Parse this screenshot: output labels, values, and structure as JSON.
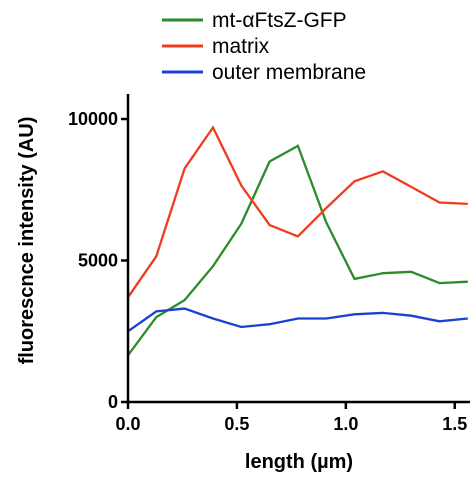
{
  "chart_data": {
    "type": "line",
    "xlabel": "length (µm)",
    "ylabel": "fluorescnce intensity (AU)",
    "xlim": [
      0,
      1.57
    ],
    "ylim": [
      0,
      10000
    ],
    "x_ticks": [
      "0.0",
      "0.5",
      "1.0",
      "1.5"
    ],
    "y_ticks": [
      "0",
      "5000",
      "10000"
    ],
    "legend_position": "top",
    "grid": false,
    "series": [
      {
        "name": "mt-αFtsZ-GFP",
        "color": "#2a8c2a",
        "x": [
          0.0,
          0.13,
          0.26,
          0.39,
          0.52,
          0.65,
          0.78,
          0.91,
          1.04,
          1.17,
          1.3,
          1.43,
          1.56
        ],
        "y": [
          1650,
          3000,
          3600,
          4800,
          6300,
          8500,
          9050,
          6350,
          4350,
          4550,
          4600,
          4200,
          4250
        ]
      },
      {
        "name": "matrix",
        "color": "#f03c1e",
        "x": [
          0.0,
          0.13,
          0.26,
          0.39,
          0.52,
          0.65,
          0.78,
          0.91,
          1.04,
          1.17,
          1.3,
          1.43,
          1.56
        ],
        "y": [
          3700,
          5150,
          8250,
          9700,
          7650,
          6250,
          5850,
          6850,
          7800,
          8150,
          7600,
          7050,
          7000
        ]
      },
      {
        "name": "outer membrane",
        "color": "#1c3fd6",
        "x": [
          0.0,
          0.13,
          0.26,
          0.39,
          0.52,
          0.65,
          0.78,
          0.91,
          1.04,
          1.17,
          1.3,
          1.43,
          1.56
        ],
        "y": [
          2500,
          3200,
          3300,
          2950,
          2650,
          2750,
          2950,
          2950,
          3100,
          3150,
          3050,
          2850,
          2950
        ]
      }
    ]
  }
}
